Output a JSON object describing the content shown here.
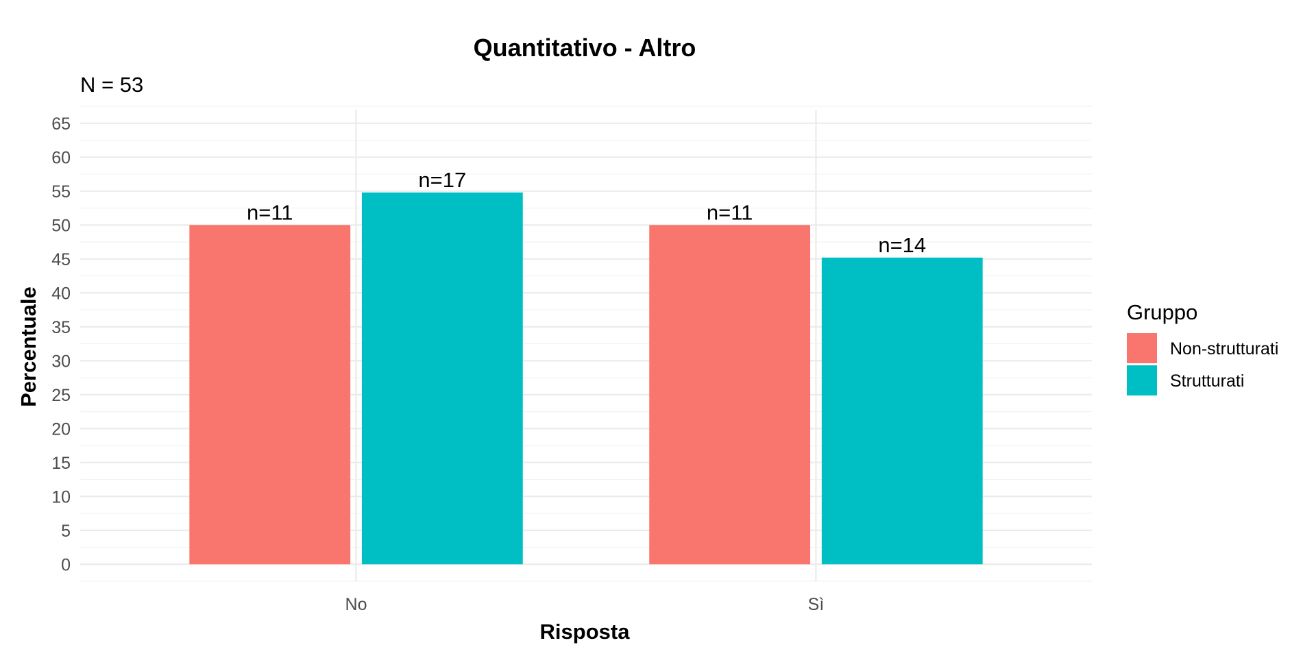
{
  "chart_data": {
    "type": "bar",
    "title": "Quantitativo - Altro",
    "subtitle": "N = 53",
    "xlabel": "Risposta",
    "ylabel": "Percentuale",
    "categories": [
      "No",
      "Sì"
    ],
    "ylim": [
      -2.5,
      67
    ],
    "yticks": [
      0,
      5,
      10,
      15,
      20,
      25,
      30,
      35,
      40,
      45,
      50,
      55,
      60,
      65
    ],
    "grid": true,
    "legend": {
      "title": "Gruppo",
      "position": "right"
    },
    "series": [
      {
        "name": "Non-strutturati",
        "color": "#F8766D",
        "values": [
          50,
          50
        ],
        "labels": [
          "n=11",
          "n=11"
        ]
      },
      {
        "name": "Strutturati",
        "color": "#00BFC4",
        "values": [
          54.8,
          45.2
        ],
        "labels": [
          "n=17",
          "n=14"
        ]
      }
    ]
  }
}
